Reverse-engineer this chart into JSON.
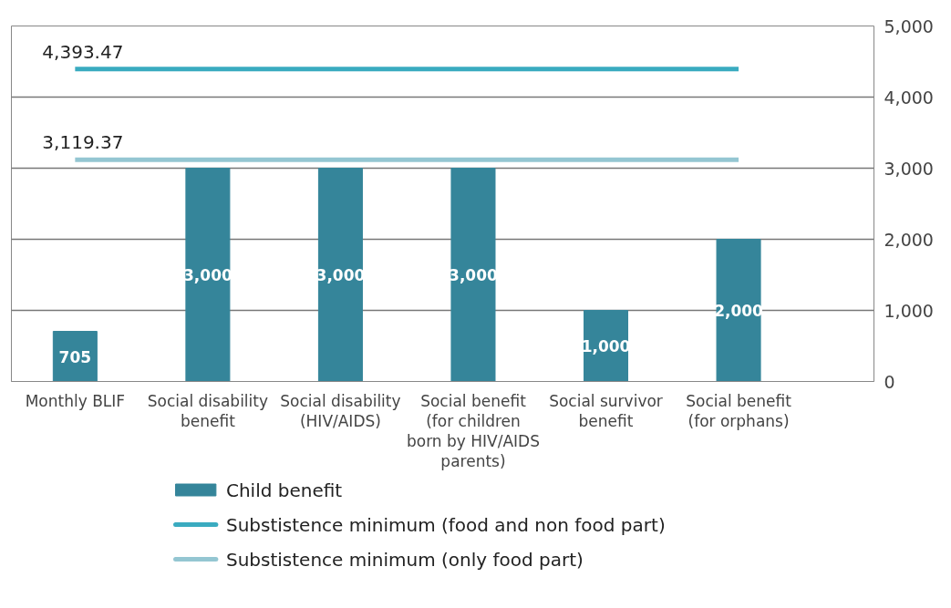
{
  "chart_data": {
    "type": "bar",
    "categories": [
      "Monthly BLIF",
      "Social disability benefit",
      "Social disability (HIV/AIDS)",
      "Social benefit (for children born by HIV/AIDS parents)",
      "Social survivor benefit",
      "Social benefit (for orphans)"
    ],
    "series": [
      {
        "name": "Child benefit",
        "color": "#35859a",
        "values": [
          705,
          3000,
          3000,
          3000,
          1000,
          2000
        ],
        "value_labels": [
          "705",
          "3,000",
          "3,000",
          "3,000",
          "1,000",
          "2,000"
        ]
      },
      {
        "name": "Substistence minimum (food and non food part)",
        "type": "line",
        "color": "#3aabc0",
        "values": [
          4393.47,
          4393.47,
          4393.47,
          4393.47,
          4393.47,
          4393.47
        ],
        "value_labels": [
          "4,393.47",
          null,
          null,
          null,
          null,
          null
        ]
      },
      {
        "name": "Substistence minimum (only food part)",
        "type": "line",
        "color": "#94c6d2",
        "values": [
          3119.37,
          3119.37,
          3119.37,
          3119.37,
          3119.37,
          3119.37
        ],
        "value_labels": [
          "3,119.37",
          null,
          null,
          null,
          null,
          null
        ]
      }
    ],
    "ylim": [
      0,
      5000
    ],
    "yticks": [
      {
        "value": 0,
        "label": "0"
      },
      {
        "value": 1000,
        "label": "1,000"
      },
      {
        "value": 2000,
        "label": "2,000"
      },
      {
        "value": 3000,
        "label": "3,000"
      },
      {
        "value": 4000,
        "label": "4,000"
      },
      {
        "value": 5000,
        "label": "5,000"
      }
    ],
    "grid": "y",
    "legend": "bottom"
  }
}
